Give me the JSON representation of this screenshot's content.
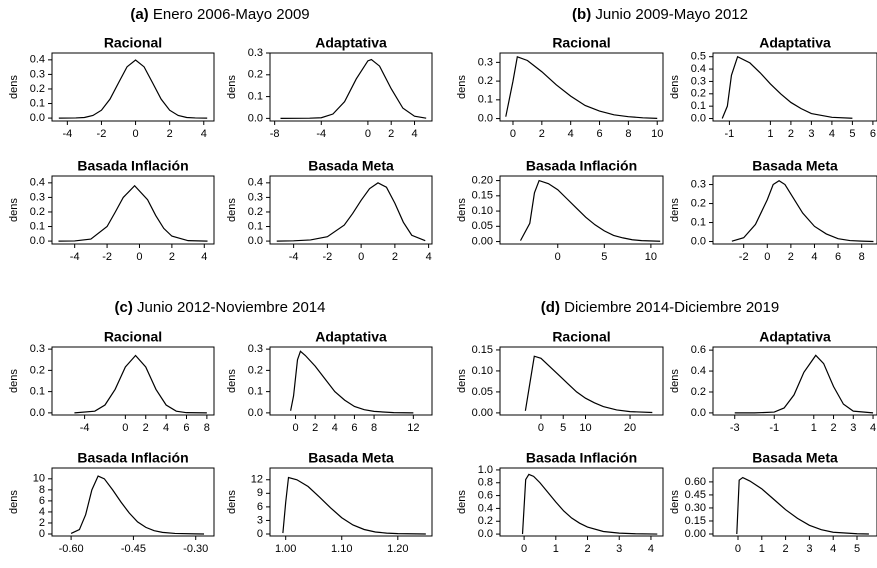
{
  "panels": [
    {
      "label": "(a)",
      "title": "Enero 2006-Mayo 2009"
    },
    {
      "label": "(b)",
      "title": "Junio 2009-Mayo 2012"
    },
    {
      "label": "(c)",
      "title": "Junio 2012-Noviembre 2014"
    },
    {
      "label": "(d)",
      "title": "Diciembre 2014-Diciembre 2019"
    }
  ],
  "chart_data": [
    {
      "type": "line",
      "title": "Racional",
      "ylabel": "dens",
      "color": "#000000",
      "x": [
        -4.5,
        -3.5,
        -3,
        -2.5,
        -2,
        -1.5,
        -1,
        -0.5,
        0,
        0.5,
        1,
        1.5,
        2,
        2.5,
        3,
        3.5,
        4.2
      ],
      "values": [
        0,
        0.001,
        0.004,
        0.018,
        0.054,
        0.13,
        0.242,
        0.352,
        0.399,
        0.352,
        0.242,
        0.13,
        0.054,
        0.018,
        0.004,
        0.001,
        0
      ],
      "xlim": [
        -4.9,
        4.6
      ],
      "ylim": [
        -0.02,
        0.447
      ],
      "xticks": [
        -4,
        -2,
        0,
        2,
        4
      ],
      "yticks": [
        {
          "value": 0,
          "label": "0.0"
        },
        0.1,
        0.2,
        0.3,
        0.4
      ]
    },
    {
      "type": "line",
      "title": "Adaptativa",
      "ylabel": "dens",
      "color": "#000000",
      "x": [
        -7.5,
        -5,
        -4,
        -3,
        -2,
        -1,
        0,
        0.3,
        1,
        2,
        3,
        4,
        5
      ],
      "values": [
        0,
        0.001,
        0.003,
        0.02,
        0.077,
        0.181,
        0.264,
        0.27,
        0.24,
        0.136,
        0.047,
        0.01,
        0.001
      ],
      "xlim": [
        -8.4,
        5.5
      ],
      "ylim": [
        -0.012,
        0.3
      ],
      "xticks": [
        -8,
        -4,
        0,
        2,
        4
      ],
      "yticks": [
        {
          "value": 0,
          "label": "0.0"
        },
        0.1,
        0.2,
        0.3
      ]
    },
    {
      "type": "line",
      "title": "Basada Inflación",
      "ylabel": "dens",
      "color": "#000000",
      "x": [
        -5,
        -4,
        -3,
        -2,
        -1.5,
        -1,
        -0.3,
        0.5,
        1,
        1.5,
        2,
        3,
        4.2
      ],
      "values": [
        0,
        0.001,
        0.014,
        0.1,
        0.198,
        0.3,
        0.38,
        0.284,
        0.176,
        0.087,
        0.034,
        0.003,
        0
      ],
      "xlim": [
        -5.4,
        4.6
      ],
      "ylim": [
        -0.02,
        0.447
      ],
      "xticks": [
        -4,
        -2,
        0,
        2,
        4
      ],
      "yticks": [
        {
          "value": 0,
          "label": "0.0"
        },
        0.1,
        0.2,
        0.3,
        0.4
      ]
    },
    {
      "type": "line",
      "title": "Basada Meta",
      "ylabel": "dens",
      "color": "#000000",
      "x": [
        -5,
        -4,
        -3,
        -2,
        -1,
        -0.5,
        0,
        0.5,
        1,
        1.5,
        2,
        2.5,
        3,
        3.8
      ],
      "values": [
        0,
        0.002,
        0.008,
        0.03,
        0.11,
        0.19,
        0.28,
        0.36,
        0.4,
        0.37,
        0.26,
        0.13,
        0.04,
        0.003
      ],
      "xlim": [
        -5.4,
        4.2
      ],
      "ylim": [
        -0.02,
        0.447
      ],
      "xticks": [
        -4,
        -2,
        0,
        2,
        4
      ],
      "yticks": [
        {
          "value": 0,
          "label": "0.0"
        },
        0.1,
        0.2,
        0.3,
        0.4
      ]
    },
    {
      "type": "line",
      "title": "Racional",
      "ylabel": "dens",
      "color": "#000000",
      "x": [
        -0.5,
        0,
        0.3,
        1,
        2,
        3,
        4,
        5,
        6,
        7,
        8,
        9,
        10
      ],
      "values": [
        0.01,
        0.2,
        0.33,
        0.31,
        0.25,
        0.18,
        0.12,
        0.07,
        0.04,
        0.02,
        0.01,
        0.004,
        0.001
      ],
      "xlim": [
        -0.9,
        10.4
      ],
      "ylim": [
        -0.013,
        0.35
      ],
      "xticks": [
        0,
        2,
        4,
        6,
        8,
        10
      ],
      "yticks": [
        {
          "value": 0,
          "label": "0.0"
        },
        0.1,
        0.2,
        0.3
      ]
    },
    {
      "type": "line",
      "title": "Adaptativa",
      "ylabel": "dens",
      "color": "#000000",
      "x": [
        -1.35,
        -1.1,
        -0.9,
        -0.6,
        0,
        0.5,
        1,
        1.5,
        2,
        2.5,
        3,
        4,
        5
      ],
      "values": [
        0,
        0.1,
        0.35,
        0.5,
        0.45,
        0.37,
        0.28,
        0.2,
        0.13,
        0.08,
        0.04,
        0.01,
        0.002
      ],
      "xlim": [
        -1.8,
        6.2
      ],
      "ylim": [
        -0.02,
        0.53
      ],
      "xticks": [
        -1,
        1,
        2,
        3,
        4,
        5,
        6
      ],
      "yticks": [
        {
          "value": 0,
          "label": "0.0"
        },
        0.1,
        0.2,
        0.3,
        0.4,
        0.5
      ]
    },
    {
      "type": "line",
      "title": "Basada Inflación",
      "ylabel": "dens",
      "color": "#000000",
      "x": [
        -4,
        -3,
        -2.5,
        -2,
        -1,
        0,
        1,
        2,
        3,
        4,
        5,
        6,
        7,
        8,
        9,
        11
      ],
      "values": [
        0.003,
        0.06,
        0.16,
        0.2,
        0.19,
        0.17,
        0.14,
        0.11,
        0.08,
        0.055,
        0.035,
        0.02,
        0.012,
        0.006,
        0.003,
        0.001
      ],
      "xlim": [
        -6.2,
        11.3
      ],
      "ylim": [
        -0.008,
        0.215
      ],
      "xticks": [
        0,
        5,
        10
      ],
      "yticks": [
        {
          "value": 0,
          "label": "0.00"
        },
        {
          "value": 0.05,
          "label": "0.05"
        },
        {
          "value": 0.1,
          "label": "0.10"
        },
        {
          "value": 0.15,
          "label": "0.15"
        },
        {
          "value": 0.2,
          "label": "0.20"
        }
      ]
    },
    {
      "type": "line",
      "title": "Basada Meta",
      "ylabel": "dens",
      "color": "#000000",
      "x": [
        -3,
        -2,
        -1,
        0,
        0.5,
        1,
        1.5,
        2,
        3,
        4,
        5,
        6,
        7,
        8,
        9
      ],
      "values": [
        0.002,
        0.02,
        0.09,
        0.22,
        0.3,
        0.32,
        0.3,
        0.25,
        0.15,
        0.08,
        0.04,
        0.015,
        0.005,
        0.002,
        0
      ],
      "xlim": [
        -4.6,
        9.3
      ],
      "ylim": [
        -0.013,
        0.345
      ],
      "xticks": [
        -2,
        0,
        2,
        4,
        6,
        8
      ],
      "yticks": [
        {
          "value": 0,
          "label": "0.0"
        },
        0.1,
        0.2,
        0.3
      ]
    },
    {
      "type": "line",
      "title": "Racional",
      "ylabel": "dens",
      "color": "#000000",
      "x": [
        -5,
        -3,
        -2,
        -1,
        0,
        1,
        2,
        3,
        4,
        5,
        6,
        8
      ],
      "values": [
        0,
        0.008,
        0.037,
        0.111,
        0.216,
        0.27,
        0.216,
        0.111,
        0.037,
        0.008,
        0.001,
        0
      ],
      "xlim": [
        -7.2,
        8.7
      ],
      "ylim": [
        -0.01,
        0.31
      ],
      "xticks": [
        -4,
        0,
        2,
        4,
        6,
        8
      ],
      "yticks": [
        {
          "value": 0,
          "label": "0.0"
        },
        0.1,
        0.2,
        0.3
      ]
    },
    {
      "type": "line",
      "title": "Adaptativa",
      "ylabel": "dens",
      "color": "#000000",
      "x": [
        -0.5,
        -0.2,
        0.2,
        0.5,
        1,
        2,
        3,
        4,
        5,
        6,
        7,
        8,
        10,
        12
      ],
      "values": [
        0.01,
        0.08,
        0.25,
        0.29,
        0.27,
        0.22,
        0.16,
        0.1,
        0.06,
        0.03,
        0.015,
        0.007,
        0.001,
        0
      ],
      "xlim": [
        -2.6,
        13.9
      ],
      "ylim": [
        -0.01,
        0.31
      ],
      "xticks": [
        0,
        2,
        4,
        6,
        8,
        12
      ],
      "yticks": [
        {
          "value": 0,
          "label": "0.0"
        },
        0.1,
        0.2,
        0.3
      ]
    },
    {
      "type": "line",
      "title": "Basada Inflación",
      "ylabel": "dens",
      "color": "#000000",
      "x": [
        -0.6,
        -0.58,
        -0.565,
        -0.55,
        -0.535,
        -0.52,
        -0.5,
        -0.48,
        -0.46,
        -0.44,
        -0.42,
        -0.4,
        -0.38,
        -0.35,
        -0.3,
        -0.28
      ],
      "values": [
        0.1,
        0.8,
        3.5,
        8,
        10.5,
        10,
        8,
        5.8,
        3.8,
        2.2,
        1.2,
        0.6,
        0.3,
        0.1,
        0.02,
        0
      ],
      "xlim": [
        -0.646,
        -0.256
      ],
      "ylim": [
        -0.36,
        11.96
      ],
      "xticks": [
        {
          "value": -0.6,
          "label": "-0.60"
        },
        {
          "value": -0.45,
          "label": "-0.45"
        },
        {
          "value": -0.3,
          "label": "-0.30"
        }
      ],
      "yticks": [
        0,
        2,
        4,
        6,
        8,
        10
      ]
    },
    {
      "type": "line",
      "title": "Basada Meta",
      "ylabel": "dens",
      "color": "#000000",
      "x": [
        0.995,
        1,
        1.005,
        1.02,
        1.04,
        1.06,
        1.08,
        1.1,
        1.12,
        1.14,
        1.16,
        1.18,
        1.2,
        1.25
      ],
      "values": [
        0.2,
        7,
        12.5,
        12,
        10.5,
        8.2,
        5.8,
        3.6,
        2,
        1,
        0.45,
        0.2,
        0.08,
        0
      ],
      "xlim": [
        0.972,
        1.261
      ],
      "ylim": [
        -0.44,
        14.6
      ],
      "xticks": [
        {
          "value": 1,
          "label": "1.00"
        },
        {
          "value": 1.1,
          "label": "1.10"
        },
        {
          "value": 1.2,
          "label": "1.20"
        }
      ],
      "yticks": [
        0,
        3,
        6,
        9,
        12
      ]
    },
    {
      "type": "line",
      "title": "Racional",
      "ylabel": "dens",
      "color": "#000000",
      "x": [
        -3.5,
        -2.5,
        -1.5,
        0,
        2,
        4,
        6,
        8,
        10,
        12,
        14,
        17,
        20,
        25
      ],
      "values": [
        0.005,
        0.07,
        0.135,
        0.13,
        0.11,
        0.09,
        0.07,
        0.05,
        0.035,
        0.024,
        0.015,
        0.007,
        0.003,
        0.001
      ],
      "xlim": [
        -9.2,
        27.4
      ],
      "ylim": [
        -0.005,
        0.157
      ],
      "xticks": [
        0,
        5,
        10,
        20
      ],
      "yticks": [
        {
          "value": 0,
          "label": "0.00"
        },
        {
          "value": 0.05,
          "label": "0.05"
        },
        {
          "value": 0.1,
          "label": "0.10"
        },
        {
          "value": 0.15,
          "label": "0.15"
        }
      ]
    },
    {
      "type": "line",
      "title": "Adaptativa",
      "ylabel": "dens",
      "color": "#000000",
      "x": [
        -3,
        -2,
        -1,
        -0.5,
        0,
        0.5,
        1.1,
        1.5,
        2,
        2.5,
        3,
        4
      ],
      "values": [
        0,
        0,
        0.008,
        0.047,
        0.172,
        0.388,
        0.55,
        0.472,
        0.252,
        0.084,
        0.017,
        0
      ],
      "xlim": [
        -4.1,
        4.2
      ],
      "ylim": [
        -0.02,
        0.63
      ],
      "xticks": [
        -3,
        -1,
        1,
        2,
        3,
        4
      ],
      "yticks": [
        {
          "value": 0,
          "label": "0.0"
        },
        0.2,
        0.4,
        0.6
      ]
    },
    {
      "type": "line",
      "title": "Basada Inflación",
      "ylabel": "dens",
      "color": "#000000",
      "x": [
        -0.05,
        0.05,
        0.15,
        0.3,
        0.5,
        0.75,
        1,
        1.25,
        1.5,
        1.75,
        2,
        2.5,
        3,
        3.5,
        4.2
      ],
      "values": [
        0,
        0.85,
        0.93,
        0.9,
        0.8,
        0.65,
        0.5,
        0.36,
        0.25,
        0.17,
        0.11,
        0.04,
        0.015,
        0.005,
        0
      ],
      "xlim": [
        -0.76,
        4.38
      ],
      "ylim": [
        -0.03,
        1.03
      ],
      "xticks": [
        0,
        1,
        2,
        3,
        4
      ],
      "yticks": [
        {
          "value": 0,
          "label": "0.0"
        },
        0.2,
        0.4,
        0.6,
        0.8,
        {
          "value": 1,
          "label": "1.0"
        }
      ]
    },
    {
      "type": "line",
      "title": "Basada Meta",
      "ylabel": "dens",
      "color": "#000000",
      "x": [
        -0.05,
        0.05,
        0.2,
        0.5,
        1,
        1.5,
        2,
        2.5,
        3,
        3.5,
        4,
        5,
        5.5
      ],
      "values": [
        0,
        0.62,
        0.65,
        0.61,
        0.52,
        0.4,
        0.28,
        0.18,
        0.1,
        0.05,
        0.02,
        0.003,
        0
      ],
      "xlim": [
        -1.05,
        5.84
      ],
      "ylim": [
        -0.023,
        0.76
      ],
      "xticks": [
        0,
        1,
        2,
        3,
        4,
        5
      ],
      "yticks": [
        {
          "value": 0,
          "label": "0.00"
        },
        0.15,
        {
          "value": 0.3,
          "label": "0.30"
        },
        0.45,
        {
          "value": 0.6,
          "label": "0.60"
        }
      ]
    }
  ]
}
